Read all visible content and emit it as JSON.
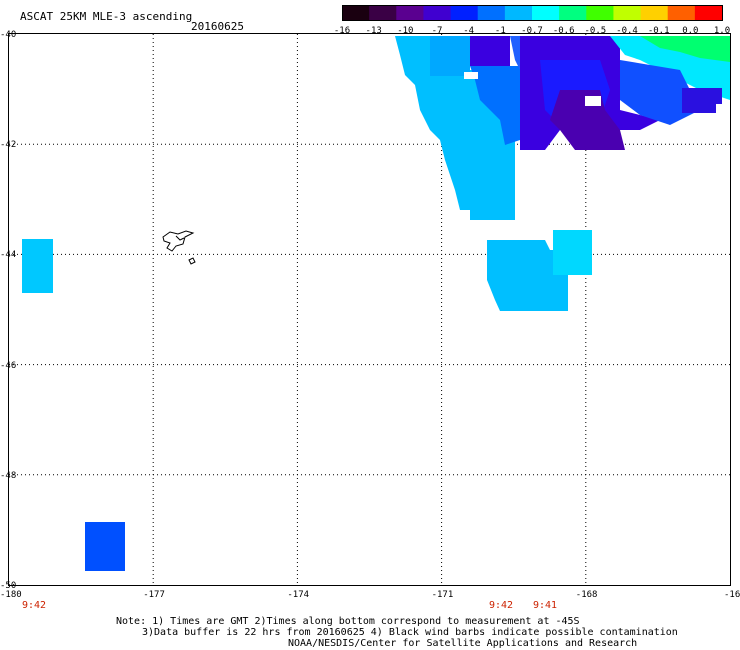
{
  "header": {
    "title": "ASCAT 25KM MLE-3 ascending",
    "date": "20160625"
  },
  "colorbar": {
    "labels": [
      "-16",
      "-13",
      "-10",
      "-7",
      "-4",
      "-1",
      "-0.7",
      "-0.6",
      "-0.5",
      "-0.4",
      "-0.1",
      "0.0",
      "1.0"
    ],
    "colors": [
      "#1a0010",
      "#3a0045",
      "#5a0090",
      "#4000d0",
      "#0020ff",
      "#0070ff",
      "#00b8ff",
      "#00ffff",
      "#00ff80",
      "#40ff00",
      "#c0ff00",
      "#ffd000",
      "#ff6000",
      "#ff0000"
    ]
  },
  "map": {
    "lat_labels": [
      "-40",
      "-42",
      "-44",
      "-46",
      "-48",
      "-50"
    ],
    "lon_labels": [
      "-180",
      "-177",
      "-174",
      "-171",
      "-168",
      "-16"
    ],
    "grid": "dotted"
  },
  "time_labels": [
    "9:42",
    "9:42",
    "9:41"
  ],
  "notes": {
    "line1": "Note: 1) Times are GMT 2)Times along bottom correspond to measurement at -45S",
    "line2": "3)Data buffer is 22 hrs from 20160625 4) Black wind barbs indicate possible contamination",
    "line3": "NOAA/NESDIS/Center for Satellite Applications and Research"
  }
}
